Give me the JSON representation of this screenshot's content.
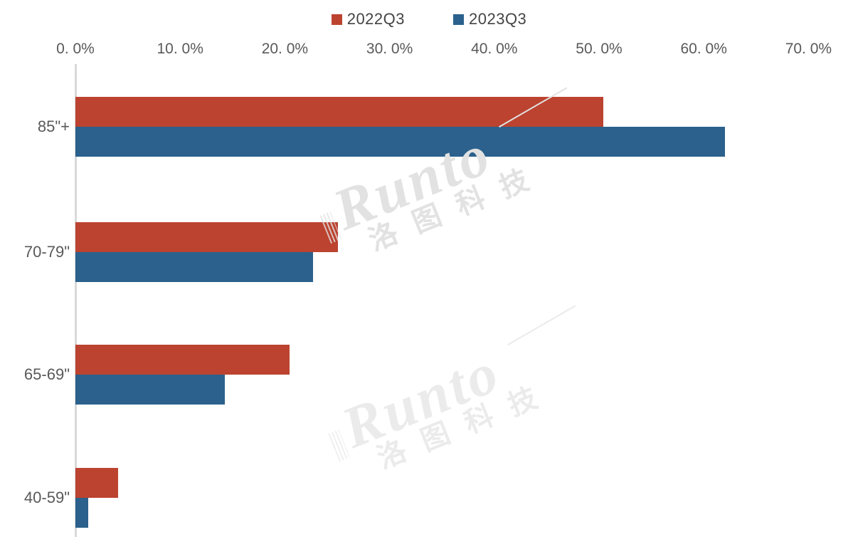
{
  "watermark": {
    "brand": "Runto",
    "brand_cn": "洛图科技"
  },
  "chart_data": {
    "type": "bar",
    "orientation": "horizontal",
    "title": "",
    "xlabel": "",
    "ylabel": "",
    "categories": [
      "85\"+",
      "70-79\"",
      "65-69\"",
      "40-59\""
    ],
    "series": [
      {
        "name": "2022Q3",
        "color": "#bc4330",
        "values": [
          50.5,
          25.1,
          20.5,
          4.1
        ]
      },
      {
        "name": "2023Q3",
        "color": "#2b618c",
        "values": [
          62.1,
          22.7,
          14.3,
          1.2
        ]
      }
    ],
    "xlim": [
      0,
      70
    ],
    "x_tick_step": 10,
    "x_ticks": [
      "0. 0%",
      "10. 0%",
      "20. 0%",
      "30. 0%",
      "40. 0%",
      "50. 0%",
      "60. 0%",
      "70. 0%"
    ],
    "grid": false,
    "legend_position": "top-center",
    "axis_line_color": "#d9d9d9"
  }
}
